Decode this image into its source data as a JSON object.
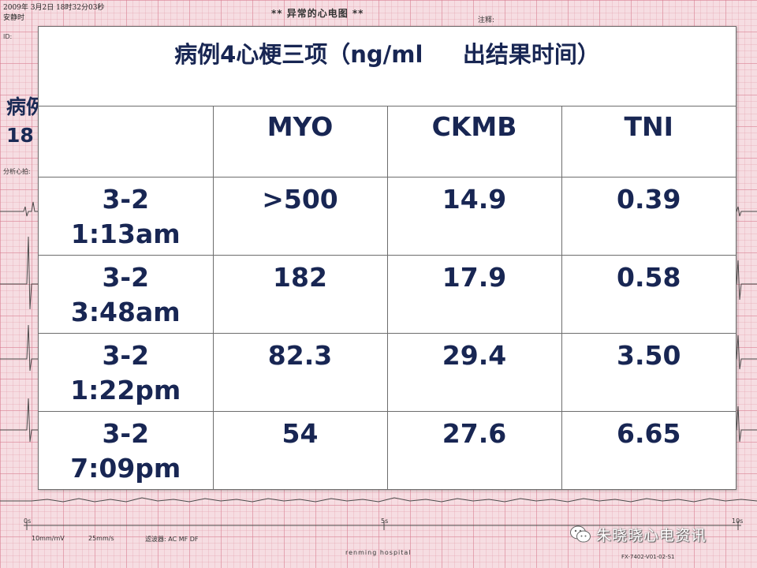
{
  "ecg": {
    "datetime": "2009年 3月2日  18时32分03秒",
    "status": "安静时",
    "title": "** 异常的心电图 **",
    "notes_label": "注释:",
    "id_label": "ID:",
    "rhythm_label": "分析心拍:",
    "speed": "10mm/mV",
    "paper": "25mm/s",
    "filter": "滤波器: AC MF DF",
    "sec_0": "0s",
    "sec_5": "5s",
    "sec_10": "10s",
    "hospital": "renming hospital",
    "model": "FX-7402-V01-02-S1",
    "peek_line1": "病例",
    "peek_line2": "18"
  },
  "table": {
    "title": "病例4心梗三项（ng/ml     出结果时间）",
    "header": [
      "",
      "MYO",
      "CKMB",
      "TNI"
    ],
    "rows": [
      {
        "date": "3-2",
        "time": "1:13am",
        "myo": ">500",
        "ckmb": "14.9",
        "tni": "0.39"
      },
      {
        "date": "3-2",
        "time": "3:48am",
        "myo": "182",
        "ckmb": "17.9",
        "tni": "0.58"
      },
      {
        "date": "3-2",
        "time": "1:22pm",
        "myo": "82.3",
        "ckmb": "29.4",
        "tni": "3.50"
      },
      {
        "date": "3-2",
        "time": "7:09pm",
        "myo": "54",
        "ckmb": "27.6",
        "tni": "6.65"
      }
    ]
  },
  "watermark": {
    "text": "朱晓晓心电资讯",
    "icon": "wechat-icon"
  }
}
